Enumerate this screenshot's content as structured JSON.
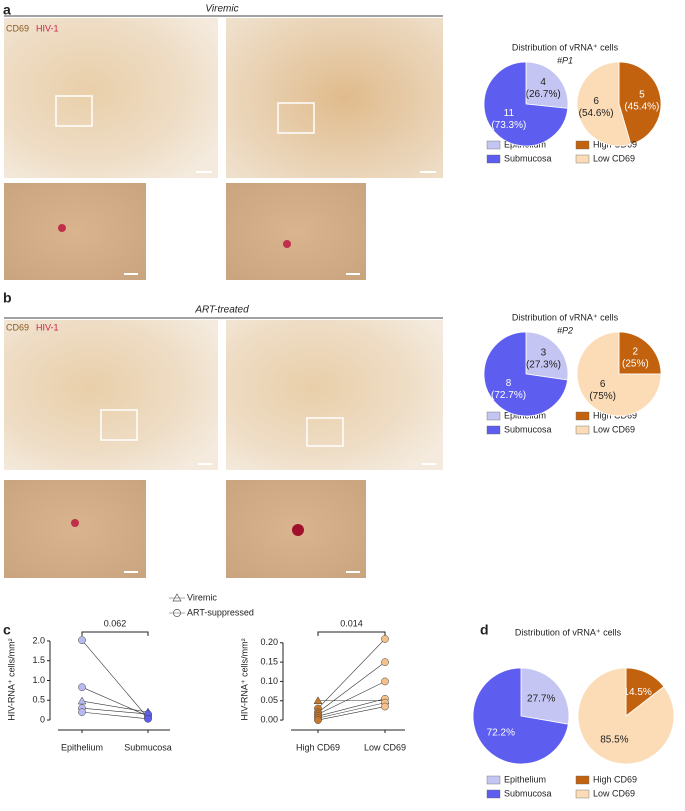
{
  "panels": [
    {
      "label": "a",
      "condition": "Viremic",
      "stain": [
        "CD69",
        "HIV-1"
      ]
    },
    {
      "label": "b",
      "condition": "ART-treated",
      "stain": [
        "CD69",
        "HIV-1"
      ]
    },
    {
      "label": "c"
    },
    {
      "label": "d"
    }
  ],
  "chart_data": [
    {
      "type": "pie",
      "title": "Distribution of vRNA⁺ cells",
      "subtitle": "#P1",
      "categories": [
        "Epithelium",
        "Submucosa"
      ],
      "values": [
        4,
        11
      ],
      "percents": [
        26.7,
        73.3
      ],
      "percent_labels": [
        "(26.7%)",
        "(73.3%)"
      ],
      "colors": [
        "#c5c5f3",
        "#5d5df0"
      ]
    },
    {
      "type": "pie",
      "categories": [
        "High CD69",
        "Low CD69"
      ],
      "values": [
        5,
        6
      ],
      "percents": [
        45.4,
        54.6
      ],
      "percent_labels": [
        "(45.4%)",
        "(54.6%)"
      ],
      "colors": [
        "#c2620f",
        "#fbdcb7"
      ]
    },
    {
      "type": "pie",
      "title": "Distribution of vRNA⁺ cells",
      "subtitle": "#P2",
      "categories": [
        "Epithelium",
        "Submucosa"
      ],
      "values": [
        3,
        8
      ],
      "percents": [
        27.3,
        72.7
      ],
      "percent_labels": [
        "(27.3%)",
        "(72.7%)"
      ],
      "colors": [
        "#c5c5f3",
        "#5d5df0"
      ]
    },
    {
      "type": "pie",
      "categories": [
        "High CD69",
        "Low CD69"
      ],
      "values": [
        2,
        6
      ],
      "percents": [
        25,
        75
      ],
      "percent_labels": [
        "(25%)",
        "(75%)"
      ],
      "colors": [
        "#c2620f",
        "#fbdcb7"
      ]
    },
    {
      "type": "pie",
      "title": "Distribution of vRNA⁺ cells",
      "categories": [
        "Epithelium",
        "Submucosa"
      ],
      "values": [
        27.7,
        72.2
      ],
      "value_labels": [
        "27.7%",
        "72.2%"
      ],
      "colors": [
        "#c5c5f3",
        "#5d5df0"
      ]
    },
    {
      "type": "pie",
      "categories": [
        "High CD69",
        "Low CD69"
      ],
      "values": [
        14.5,
        85.5
      ],
      "value_labels": [
        "14.5%",
        "85.5%"
      ],
      "colors": [
        "#c2620f",
        "#fbdcb7"
      ]
    },
    {
      "type": "paired",
      "ylabel": "HIV-RNA⁺ cells/mm²",
      "categories": [
        "Epithelium",
        "Submucosa"
      ],
      "category_colors": [
        "#b9b9f0",
        "#5d5df0"
      ],
      "annotation": "0.062",
      "ylim": [
        -0.05,
        2.1
      ],
      "yticks": [
        0,
        0.5,
        {
          "value": 1,
          "label": "1.0"
        },
        1.5,
        {
          "value": 2,
          "label": "2.0"
        }
      ],
      "series": [
        {
          "name": "Viremic",
          "marker": "triangle",
          "pairs": [
            [
              0.48,
              0.2
            ]
          ]
        },
        {
          "name": "ART-suppressed",
          "marker": "circle",
          "pairs": [
            [
              2.02,
              0.05
            ],
            [
              0.83,
              0.1
            ],
            [
              0.3,
              0.15
            ],
            [
              0.2,
              0.03
            ]
          ]
        }
      ]
    },
    {
      "type": "paired",
      "ylabel": "HIV-RNA⁺ cells/mm²",
      "categories": [
        "High CD69",
        "Low CD69"
      ],
      "category_colors": [
        "#c8782a",
        "#f5c08a"
      ],
      "annotation": "0.014",
      "ylim": [
        -0.005,
        0.215
      ],
      "yticks": [
        {
          "value": 0,
          "label": "0.00"
        },
        0.05,
        {
          "value": 0.1,
          "label": "0.10"
        },
        0.15,
        {
          "value": 0.2,
          "label": "0.20"
        }
      ],
      "series": [
        {
          "marker": "triangle",
          "pairs": [
            [
              0.05,
              0.05
            ]
          ]
        },
        {
          "marker": "circle",
          "pairs": [
            [
              0.03,
              0.21
            ],
            [
              0.02,
              0.15
            ],
            [
              0.015,
              0.1
            ],
            [
              0.01,
              0.055
            ],
            [
              0.005,
              0.045
            ],
            [
              0,
              0.035
            ]
          ]
        }
      ]
    }
  ]
}
